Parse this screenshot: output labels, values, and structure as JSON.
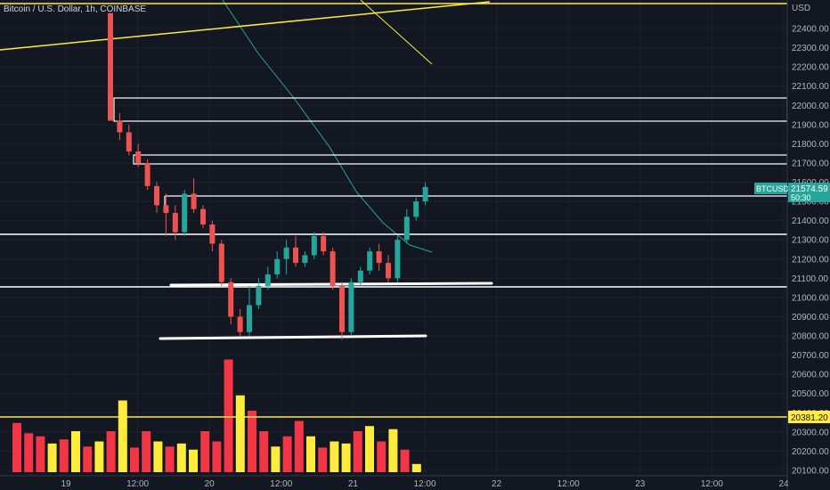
{
  "header": {
    "title": "Bitcoin / U.S. Dollar, 1h, COINBASE"
  },
  "price_axis": {
    "currency": "USD",
    "ticks": [
      "22400.00",
      "22300.00",
      "22200.00",
      "22100.00",
      "22000.00",
      "21900.00",
      "21800.00",
      "21700.00",
      "21600.00",
      "21500.00",
      "21400.00",
      "21300.00",
      "21200.00",
      "21100.00",
      "21000.00",
      "20900.00",
      "20800.00",
      "20700.00",
      "20600.00",
      "20500.00",
      "20400.00",
      "20300.00",
      "20200.00",
      "20100.00"
    ]
  },
  "time_axis": {
    "ticks": [
      "19",
      "12:00",
      "20",
      "12:00",
      "21",
      "12:00",
      "22",
      "12:00",
      "23",
      "12:00",
      "24"
    ]
  },
  "price_badge": {
    "symbol": "BTCUSD",
    "price": "21574.59",
    "countdown": "50:30",
    "color": "#26a69a"
  },
  "level_badge": {
    "price": "20381.20",
    "color": "#ffeb3b"
  },
  "colors": {
    "up": "#26a69a",
    "down": "#ef5350",
    "volume_down": "#f23645",
    "volume_up": "#ffeb3b",
    "background": "#131722",
    "grid": "#1e222d",
    "ema": "#26a69a",
    "trendline": "#ffeb3b",
    "zone": "#ffffff"
  },
  "chart_data": {
    "type": "candlestick",
    "y_range": [
      20080,
      22480
    ],
    "candles": [
      {
        "o": 22480,
        "h": 22480,
        "l": 21920,
        "c": 21920
      },
      {
        "o": 21920,
        "h": 21960,
        "l": 21820,
        "c": 21860
      },
      {
        "o": 21860,
        "h": 21900,
        "l": 21740,
        "c": 21760
      },
      {
        "o": 21760,
        "h": 21800,
        "l": 21680,
        "c": 21700
      },
      {
        "o": 21700,
        "h": 21720,
        "l": 21560,
        "c": 21580
      },
      {
        "o": 21580,
        "h": 21600,
        "l": 21440,
        "c": 21480
      },
      {
        "o": 21480,
        "h": 21540,
        "l": 21320,
        "c": 21440
      },
      {
        "o": 21440,
        "h": 21480,
        "l": 21300,
        "c": 21340
      },
      {
        "o": 21340,
        "h": 21560,
        "l": 21320,
        "c": 21540
      },
      {
        "o": 21540,
        "h": 21620,
        "l": 21440,
        "c": 21460
      },
      {
        "o": 21460,
        "h": 21480,
        "l": 21360,
        "c": 21380
      },
      {
        "o": 21380,
        "h": 21400,
        "l": 21240,
        "c": 21280
      },
      {
        "o": 21280,
        "h": 21300,
        "l": 21060,
        "c": 21080
      },
      {
        "o": 21080,
        "h": 21100,
        "l": 20860,
        "c": 20900
      },
      {
        "o": 20900,
        "h": 20940,
        "l": 20800,
        "c": 20820
      },
      {
        "o": 20820,
        "h": 21060,
        "l": 20800,
        "c": 20960
      },
      {
        "o": 20960,
        "h": 21100,
        "l": 20940,
        "c": 21060
      },
      {
        "o": 21060,
        "h": 21160,
        "l": 21040,
        "c": 21120
      },
      {
        "o": 21120,
        "h": 21240,
        "l": 21100,
        "c": 21200
      },
      {
        "o": 21200,
        "h": 21300,
        "l": 21120,
        "c": 21260
      },
      {
        "o": 21260,
        "h": 21320,
        "l": 21160,
        "c": 21180
      },
      {
        "o": 21180,
        "h": 21240,
        "l": 21160,
        "c": 21220
      },
      {
        "o": 21220,
        "h": 21340,
        "l": 21200,
        "c": 21320
      },
      {
        "o": 21320,
        "h": 21340,
        "l": 21220,
        "c": 21240
      },
      {
        "o": 21240,
        "h": 21260,
        "l": 21040,
        "c": 21060
      },
      {
        "o": 21060,
        "h": 21080,
        "l": 20780,
        "c": 20820
      },
      {
        "o": 20820,
        "h": 21100,
        "l": 20800,
        "c": 21080
      },
      {
        "o": 21080,
        "h": 21160,
        "l": 21060,
        "c": 21140
      },
      {
        "o": 21140,
        "h": 21260,
        "l": 21120,
        "c": 21240
      },
      {
        "o": 21240,
        "h": 21280,
        "l": 21140,
        "c": 21180
      },
      {
        "o": 21180,
        "h": 21220,
        "l": 21080,
        "c": 21100
      },
      {
        "o": 21100,
        "h": 21320,
        "l": 21080,
        "c": 21300
      },
      {
        "o": 21300,
        "h": 21460,
        "l": 21280,
        "c": 21420
      },
      {
        "o": 21420,
        "h": 21520,
        "l": 21400,
        "c": 21500
      },
      {
        "o": 21500,
        "h": 21600,
        "l": 21480,
        "c": 21575
      }
    ],
    "volume": [
      {
        "v": 48,
        "c": "down"
      },
      {
        "v": 38,
        "c": "down"
      },
      {
        "v": 35,
        "c": "down"
      },
      {
        "v": 28,
        "c": "up"
      },
      {
        "v": 32,
        "c": "down"
      },
      {
        "v": 40,
        "c": "up"
      },
      {
        "v": 25,
        "c": "down"
      },
      {
        "v": 30,
        "c": "up"
      },
      {
        "v": 40,
        "c": "down"
      },
      {
        "v": 70,
        "c": "up"
      },
      {
        "v": 24,
        "c": "down"
      },
      {
        "v": 40,
        "c": "down"
      },
      {
        "v": 30,
        "c": "up"
      },
      {
        "v": 25,
        "c": "down"
      },
      {
        "v": 28,
        "c": "up"
      },
      {
        "v": 22,
        "c": "up"
      },
      {
        "v": 40,
        "c": "down"
      },
      {
        "v": 30,
        "c": "down"
      },
      {
        "v": 110,
        "c": "down"
      },
      {
        "v": 75,
        "c": "up"
      },
      {
        "v": 60,
        "c": "down"
      },
      {
        "v": 40,
        "c": "down"
      },
      {
        "v": 25,
        "c": "up"
      },
      {
        "v": 35,
        "c": "down"
      },
      {
        "v": 50,
        "c": "down"
      },
      {
        "v": 35,
        "c": "up"
      },
      {
        "v": 24,
        "c": "down"
      },
      {
        "v": 30,
        "c": "up"
      },
      {
        "v": 28,
        "c": "up"
      },
      {
        "v": 40,
        "c": "down"
      },
      {
        "v": 45,
        "c": "up"
      },
      {
        "v": 30,
        "c": "down"
      },
      {
        "v": 42,
        "c": "up"
      },
      {
        "v": 22,
        "c": "down"
      },
      {
        "v": 8,
        "c": "up"
      }
    ]
  }
}
